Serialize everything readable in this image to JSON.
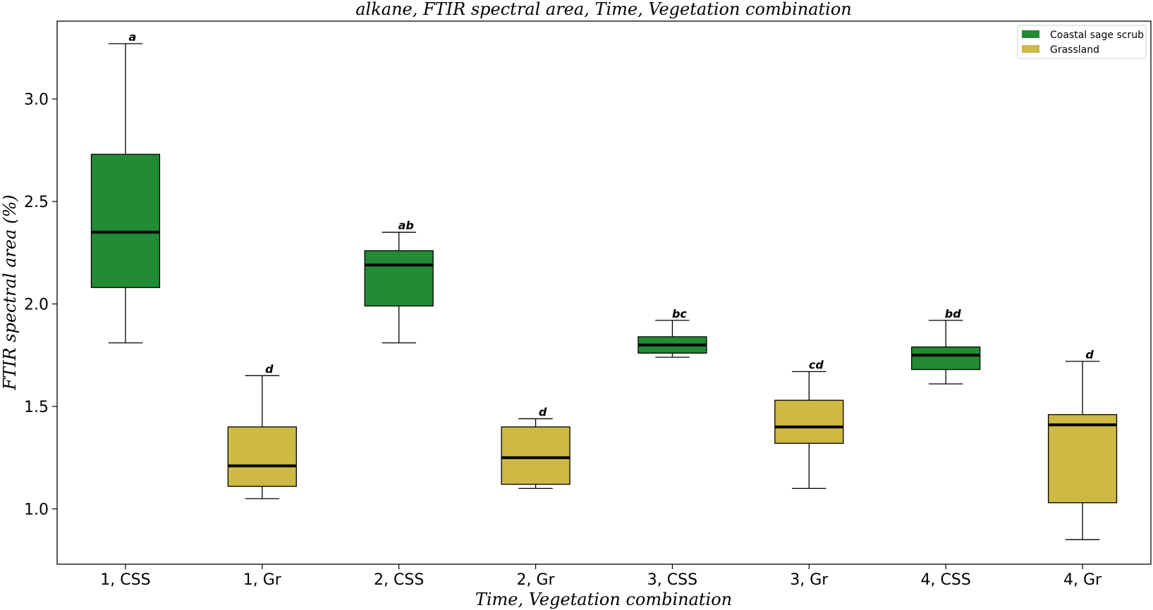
{
  "chart_data": {
    "type": "box",
    "title": "alkane, FTIR spectral area, Time, Vegetation combination",
    "xlabel": "Time, Vegetation combination",
    "ylabel": "FTIR spectral area (%)",
    "ylim": [
      0.73,
      3.38
    ],
    "yticks": [
      1.0,
      1.5,
      2.0,
      2.5,
      3.0
    ],
    "ytick_labels": [
      "1.0",
      "1.5",
      "2.0",
      "2.5",
      "3.0"
    ],
    "grid": false,
    "legend_position": "top-right",
    "legend": [
      {
        "label": "Coastal sage scrub",
        "color": "#228b34"
      },
      {
        "label": "Grassland",
        "color": "#cdb944"
      }
    ],
    "categories": [
      "1, CSS",
      "1, Gr",
      "2, CSS",
      "2, Gr",
      "3, CSS",
      "3, Gr",
      "4, CSS",
      "4, Gr"
    ],
    "boxes": [
      {
        "category": "1, CSS",
        "group": "Coastal sage scrub",
        "whislo": 1.81,
        "q1": 2.08,
        "med": 2.35,
        "q3": 2.73,
        "whishi": 3.27,
        "letter": "a"
      },
      {
        "category": "1, Gr",
        "group": "Grassland",
        "whislo": 1.05,
        "q1": 1.11,
        "med": 1.21,
        "q3": 1.4,
        "whishi": 1.65,
        "letter": "d"
      },
      {
        "category": "2, CSS",
        "group": "Coastal sage scrub",
        "whislo": 1.81,
        "q1": 1.99,
        "med": 2.19,
        "q3": 2.26,
        "whishi": 2.35,
        "letter": "ab"
      },
      {
        "category": "2, Gr",
        "group": "Grassland",
        "whislo": 1.1,
        "q1": 1.12,
        "med": 1.25,
        "q3": 1.4,
        "whishi": 1.44,
        "letter": "d"
      },
      {
        "category": "3, CSS",
        "group": "Coastal sage scrub",
        "whislo": 1.74,
        "q1": 1.76,
        "med": 1.8,
        "q3": 1.84,
        "whishi": 1.92,
        "letter": "bc"
      },
      {
        "category": "3, Gr",
        "group": "Grassland",
        "whislo": 1.1,
        "q1": 1.32,
        "med": 1.4,
        "q3": 1.53,
        "whishi": 1.67,
        "letter": "cd"
      },
      {
        "category": "4, CSS",
        "group": "Coastal sage scrub",
        "whislo": 1.61,
        "q1": 1.68,
        "med": 1.75,
        "q3": 1.79,
        "whishi": 1.92,
        "letter": "bd"
      },
      {
        "category": "4, Gr",
        "group": "Grassland",
        "whislo": 0.85,
        "q1": 1.03,
        "med": 1.41,
        "q3": 1.46,
        "whishi": 1.72,
        "letter": "d"
      }
    ]
  }
}
